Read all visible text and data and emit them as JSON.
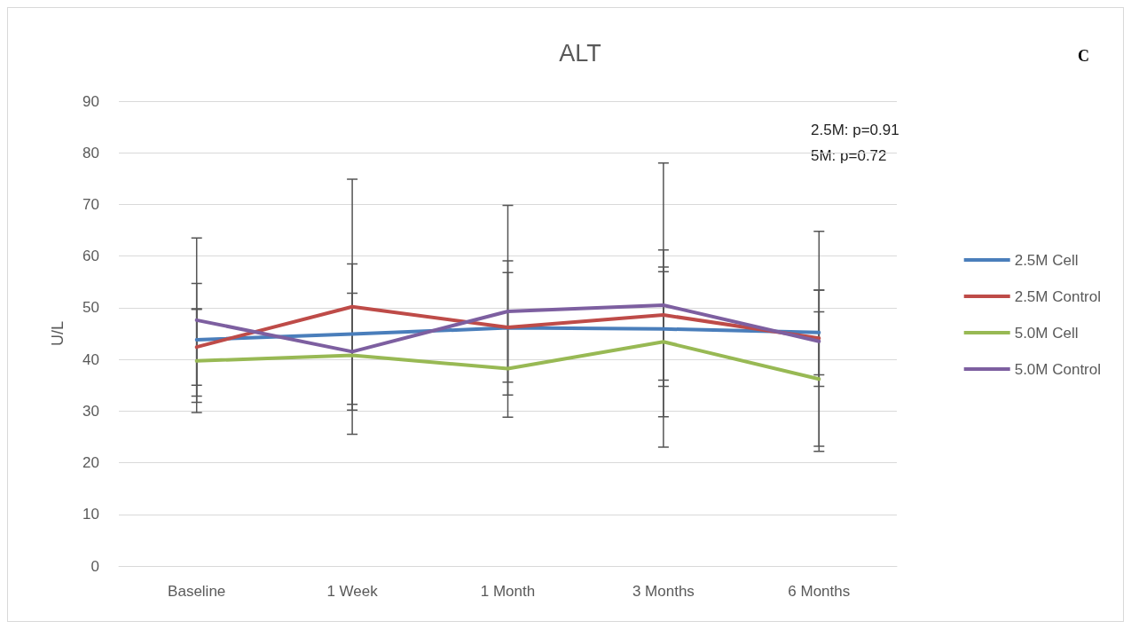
{
  "chart_data": {
    "type": "line",
    "title": "ALT",
    "ylabel": "U/L",
    "categories": [
      "Baseline",
      "1 Week",
      "1 Month",
      "3 Months",
      "6 Months"
    ],
    "series": [
      {
        "name": "2.5M Cell",
        "color": "#4a7ebb",
        "values": [
          43.8,
          44.9,
          46.1,
          45.9,
          45.2
        ],
        "errors": [
          10.9,
          13.6,
          13,
          11.1,
          8.2
        ]
      },
      {
        "name": "2.5M Control",
        "color": "#be4b48",
        "values": [
          42.4,
          50.2,
          46.2,
          48.6,
          44.1
        ],
        "errors": [
          7.4,
          24.7,
          10.6,
          12.6,
          9.3
        ]
      },
      {
        "name": "5.0M Cell",
        "color": "#98b954",
        "values": [
          39.7,
          40.8,
          38.2,
          43.4,
          36.2
        ],
        "errors": [
          10,
          null,
          null,
          14.5,
          13
        ]
      },
      {
        "name": "5.0M Control",
        "color": "#7d5fa0",
        "values": [
          47.6,
          41.5,
          49.3,
          50.5,
          43.5
        ],
        "errors": [
          15.9,
          11.3,
          20.5,
          27.5,
          21.3
        ]
      }
    ],
    "ylim": [
      0,
      90
    ],
    "yticks": [
      0,
      10,
      20,
      30,
      40,
      50,
      60,
      70,
      80,
      90
    ],
    "grid": "y",
    "legend": "right",
    "marker": "none",
    "line_style": "solid",
    "annotations": [
      "2.5M: p=0.91",
      "5M: p=0.72",
      "C"
    ]
  }
}
